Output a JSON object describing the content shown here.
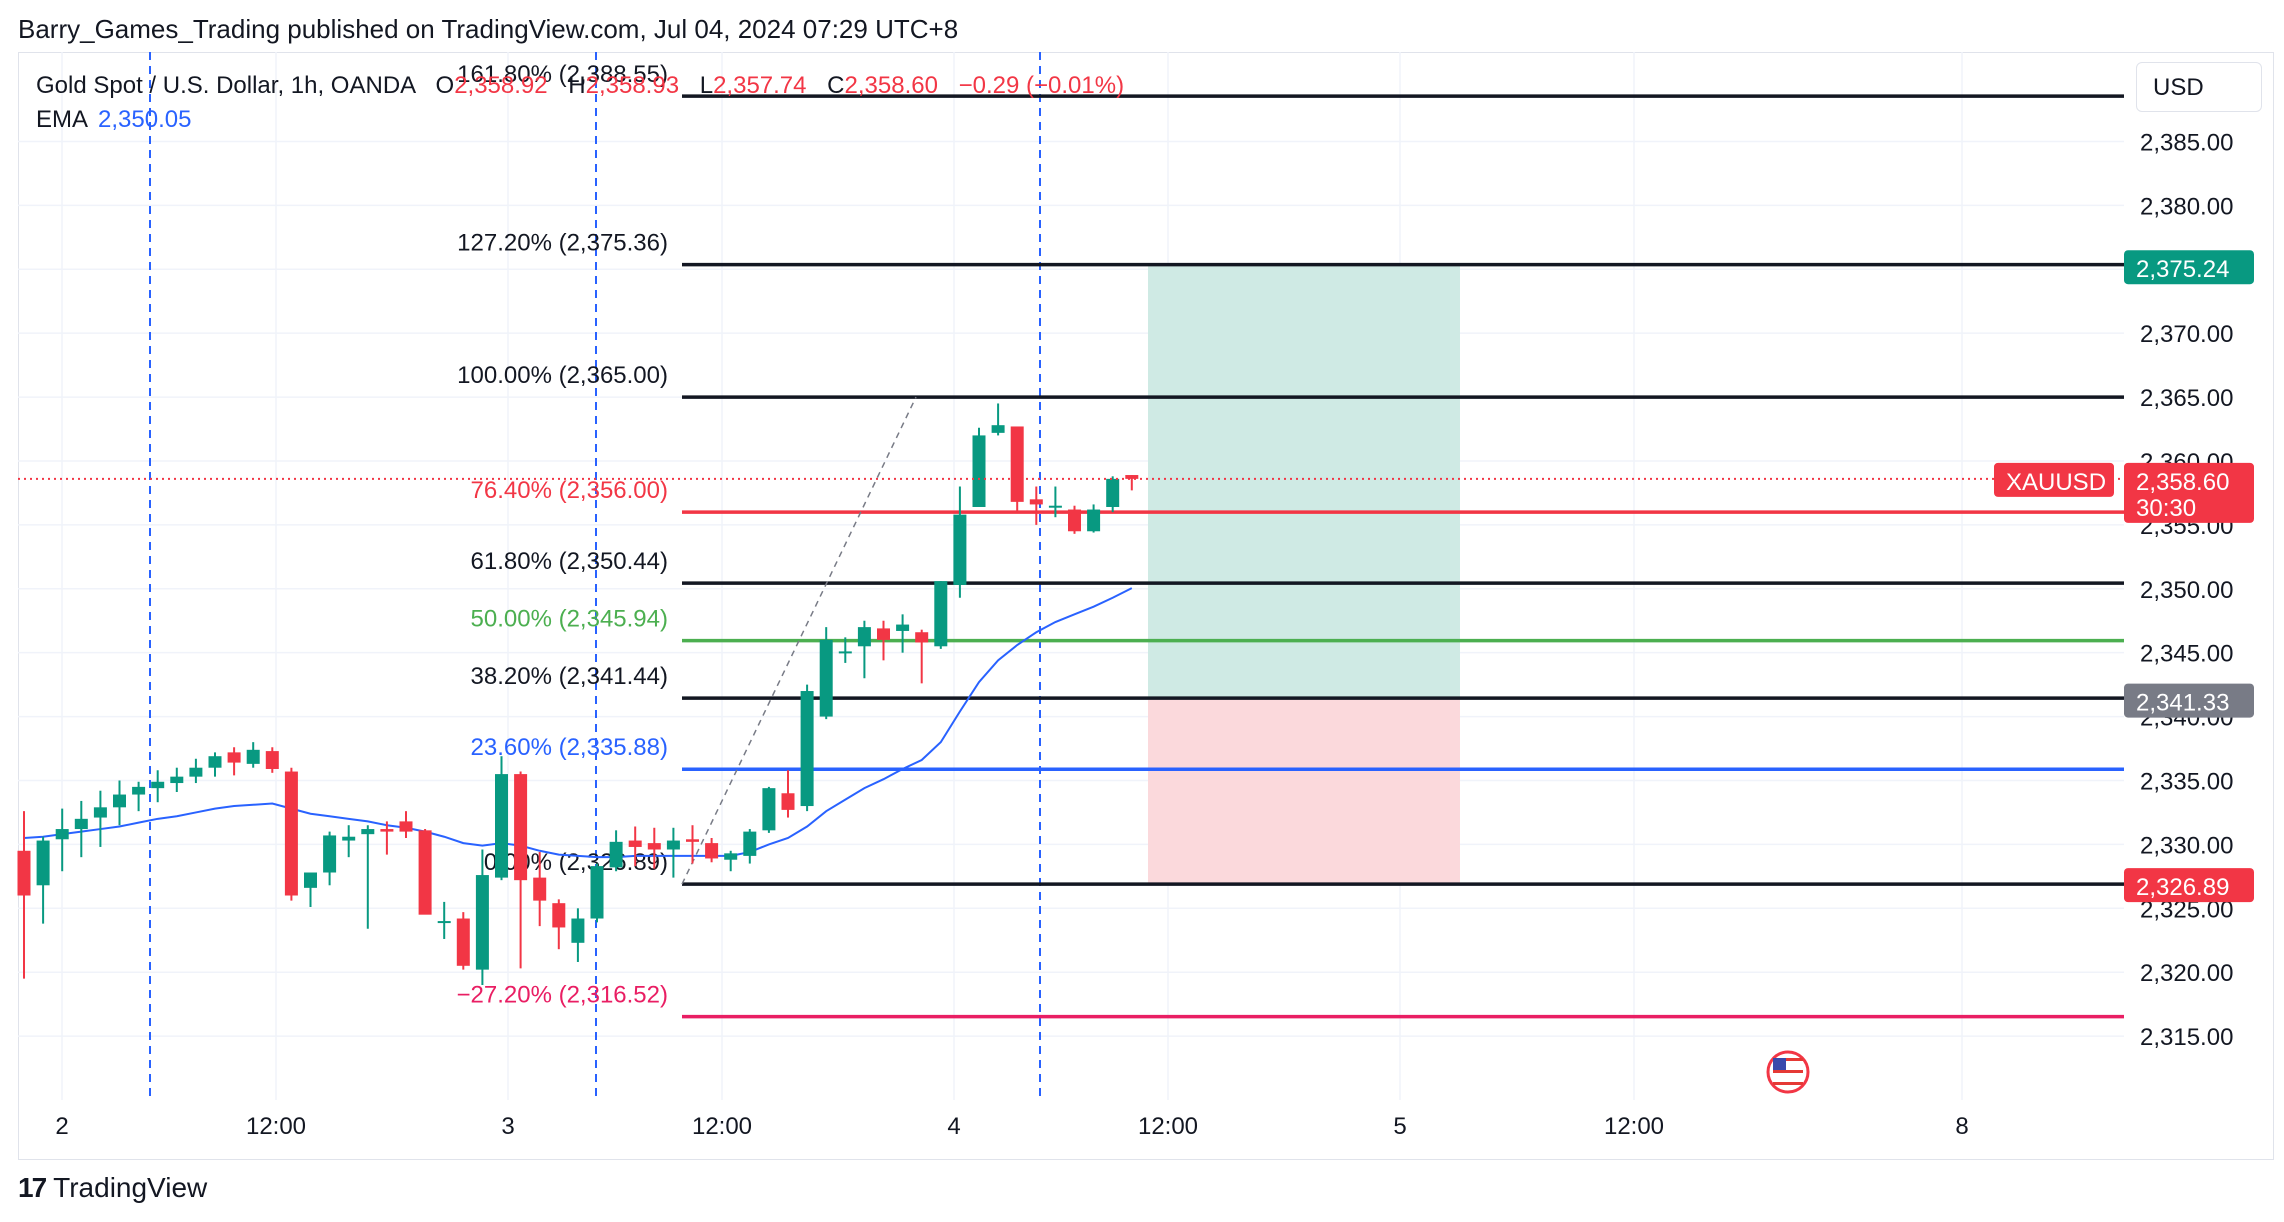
{
  "header": {
    "publisher_line": "Barry_Games_Trading published on TradingView.com, Jul 04, 2024 07:29 UTC+8"
  },
  "legend": {
    "symbol": "Gold Spot / U.S. Dollar, 1h, OANDA",
    "open_label": "O",
    "open_value": "2,358.92",
    "high_label": "H",
    "high_value": "2,358.93",
    "low_label": "L",
    "low_value": "2,357.74",
    "close_label": "C",
    "close_value": "2,358.60",
    "change": "−0.29 (−0.01%)",
    "ema_label": "EMA",
    "ema_value": "2,350.05"
  },
  "currency_button": "USD",
  "brand": {
    "logo_glyph": "17",
    "name": "TradingView"
  },
  "colors": {
    "up": "#089981",
    "down": "#f23645",
    "ema": "#2962ff",
    "grid": "#f0f3fa",
    "fib_black": "#131722",
    "fib_red": "#f23645",
    "fib_green": "#4caf50",
    "fib_blue": "#2962ff",
    "fib_pink": "#e91e63",
    "target_zone": "#cfeae4",
    "stop_zone": "#fbd9dc",
    "session_line": "#2962ff"
  },
  "chart_data": {
    "type": "candlestick",
    "symbol": "XAUUSD",
    "timeframe": "1h",
    "ylim": [
      2310,
      2392
    ],
    "y_ticks": [
      "2,315.00",
      "2,320.00",
      "2,325.00",
      "2,330.00",
      "2,335.00",
      "2,340.00",
      "2,345.00",
      "2,350.00",
      "2,355.00",
      "2,360.00",
      "2,365.00",
      "2,370.00",
      "2,375.00",
      "2,380.00",
      "2,385.00"
    ],
    "x_labels": [
      "2",
      "12:00",
      "3",
      "12:00",
      "4",
      "12:00",
      "5",
      "12:00",
      "8"
    ],
    "candles": [
      [
        2329.5,
        2332.6,
        2319.5,
        2326.0
      ],
      [
        2326.8,
        2330.6,
        2323.8,
        2330.3
      ],
      [
        2330.4,
        2332.8,
        2327.9,
        2331.2
      ],
      [
        2331.2,
        2333.4,
        2329.0,
        2332.0
      ],
      [
        2332.1,
        2334.2,
        2329.8,
        2332.9
      ],
      [
        2332.9,
        2335.0,
        2331.5,
        2333.9
      ],
      [
        2333.9,
        2334.9,
        2332.6,
        2334.5
      ],
      [
        2334.4,
        2335.8,
        2333.3,
        2334.9
      ],
      [
        2334.8,
        2336.0,
        2334.1,
        2335.3
      ],
      [
        2335.3,
        2336.7,
        2334.8,
        2336.0
      ],
      [
        2336.0,
        2337.2,
        2335.3,
        2336.9
      ],
      [
        2337.2,
        2337.6,
        2335.4,
        2336.4
      ],
      [
        2336.3,
        2338.0,
        2336.0,
        2337.4
      ],
      [
        2337.3,
        2337.6,
        2335.6,
        2335.9
      ],
      [
        2335.7,
        2336.0,
        2325.6,
        2326.0
      ],
      [
        2326.6,
        2327.6,
        2325.1,
        2327.8
      ],
      [
        2327.8,
        2331.0,
        2326.8,
        2330.7
      ],
      [
        2330.3,
        2331.5,
        2329.0,
        2330.6
      ],
      [
        2330.8,
        2331.5,
        2323.4,
        2331.2
      ],
      [
        2331.2,
        2331.8,
        2329.2,
        2331.0
      ],
      [
        2331.8,
        2332.6,
        2330.5,
        2331.0
      ],
      [
        2331.1,
        2331.2,
        2325.0,
        2324.5
      ],
      [
        2324.0,
        2325.5,
        2322.6,
        2324.0
      ],
      [
        2324.2,
        2324.7,
        2320.2,
        2320.5
      ],
      [
        2320.2,
        2329.6,
        2319.0,
        2327.6
      ],
      [
        2327.4,
        2336.9,
        2327.2,
        2335.5
      ],
      [
        2335.5,
        2335.7,
        2320.3,
        2327.2
      ],
      [
        2327.4,
        2329.4,
        2323.6,
        2325.6
      ],
      [
        2325.4,
        2325.7,
        2321.8,
        2323.5
      ],
      [
        2322.3,
        2325.0,
        2320.8,
        2324.2
      ],
      [
        2324.2,
        2328.5,
        2323.9,
        2328.3
      ],
      [
        2328.2,
        2331.1,
        2327.9,
        2330.2
      ],
      [
        2330.3,
        2331.4,
        2328.3,
        2329.8
      ],
      [
        2330.1,
        2331.3,
        2328.1,
        2329.6
      ],
      [
        2329.6,
        2331.3,
        2327.4,
        2330.3
      ],
      [
        2330.4,
        2331.5,
        2328.5,
        2330.2
      ],
      [
        2330.1,
        2330.5,
        2328.6,
        2328.9
      ],
      [
        2328.8,
        2329.5,
        2327.9,
        2329.3
      ],
      [
        2329.1,
        2331.2,
        2328.5,
        2331.0
      ],
      [
        2331.1,
        2334.5,
        2330.9,
        2334.4
      ],
      [
        2334.0,
        2335.8,
        2332.1,
        2332.7
      ],
      [
        2333.0,
        2342.5,
        2332.6,
        2342.0
      ],
      [
        2340.0,
        2347.0,
        2339.8,
        2346.0
      ],
      [
        2345.1,
        2346.2,
        2344.2,
        2345.1
      ],
      [
        2345.5,
        2347.5,
        2343.0,
        2347.0
      ],
      [
        2346.9,
        2347.5,
        2344.4,
        2346.0
      ],
      [
        2346.7,
        2348.0,
        2345.0,
        2347.2
      ],
      [
        2346.6,
        2346.8,
        2342.6,
        2345.8
      ],
      [
        2345.5,
        2350.6,
        2345.3,
        2350.6
      ],
      [
        2350.3,
        2358.0,
        2349.3,
        2355.8
      ],
      [
        2356.4,
        2362.6,
        2357.0,
        2362.0
      ],
      [
        2362.2,
        2364.5,
        2362.0,
        2362.8
      ],
      [
        2362.7,
        2362.7,
        2356.0,
        2356.8
      ],
      [
        2357.0,
        2358.0,
        2355.0,
        2356.6
      ],
      [
        2356.4,
        2358.0,
        2355.6,
        2356.5
      ],
      [
        2356.2,
        2356.5,
        2354.3,
        2354.5
      ],
      [
        2354.5,
        2356.6,
        2354.4,
        2356.2
      ],
      [
        2356.4,
        2358.8,
        2356.0,
        2358.6
      ],
      [
        2358.9,
        2358.9,
        2357.7,
        2358.6
      ]
    ],
    "ema": [
      2330.5,
      2330.6,
      2330.8,
      2331.0,
      2331.2,
      2331.4,
      2331.7,
      2332.0,
      2332.2,
      2332.5,
      2332.8,
      2333.0,
      2333.1,
      2333.2,
      2332.8,
      2332.4,
      2332.2,
      2332.0,
      2331.8,
      2331.5,
      2331.3,
      2331.0,
      2330.6,
      2330.1,
      2329.9,
      2330.1,
      2329.9,
      2329.5,
      2329.2,
      2329.1,
      2329.0,
      2329.0,
      2329.1,
      2329.1,
      2329.1,
      2329.1,
      2329.1,
      2329.1,
      2329.4,
      2330.0,
      2330.5,
      2331.4,
      2332.6,
      2333.5,
      2334.4,
      2335.1,
      2335.9,
      2336.6,
      2338.0,
      2340.4,
      2342.7,
      2344.4,
      2345.6,
      2346.6,
      2347.4,
      2348.0,
      2348.6,
      2349.3,
      2350.05
    ],
    "fib_levels": [
      {
        "label": "161.80% (2,388.55)",
        "value": 2388.55,
        "color": "black"
      },
      {
        "label": "127.20% (2,375.36)",
        "value": 2375.36,
        "color": "black"
      },
      {
        "label": "100.00% (2,365.00)",
        "value": 2365.0,
        "color": "black"
      },
      {
        "label": "76.40% (2,356.00)",
        "value": 2356.0,
        "color": "red"
      },
      {
        "label": "61.80% (2,350.44)",
        "value": 2350.44,
        "color": "black"
      },
      {
        "label": "50.00% (2,345.94)",
        "value": 2345.94,
        "color": "green"
      },
      {
        "label": "38.20% (2,341.44)",
        "value": 2341.44,
        "color": "black"
      },
      {
        "label": "23.60% (2,335.88)",
        "value": 2335.88,
        "color": "blue"
      },
      {
        "label": "0.00% (2,326.89)",
        "value": 2326.89,
        "color": "black"
      },
      {
        "label": "−27.20% (2,316.52)",
        "value": 2316.52,
        "color": "pink"
      }
    ],
    "position": {
      "entry": 2341.33,
      "target": 2375.24,
      "stop": 2326.89
    },
    "price_badges": [
      {
        "text": "2,375.24",
        "value": 2375.24,
        "color": "#089981"
      },
      {
        "text": "2,341.33",
        "value": 2341.33,
        "color": "#787b86"
      },
      {
        "text": "2,326.89",
        "value": 2326.89,
        "color": "#f23645"
      }
    ],
    "last_price": {
      "symbol_tag": "XAUUSD",
      "price": "2,358.60",
      "countdown": "30:30",
      "value": 2358.6
    }
  }
}
